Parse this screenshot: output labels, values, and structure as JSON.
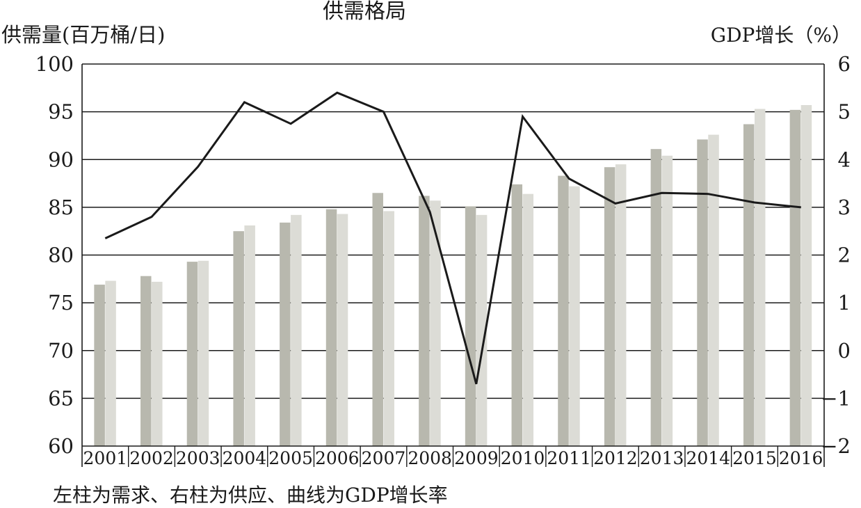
{
  "chart_data": {
    "type": "bar",
    "title": "供需格局",
    "ylabel_left": "供需量(百万桶/日)",
    "ylabel_right": "GDP增长（%）",
    "caption": "左柱为需求、右柱为供应、曲线为GDP增长率",
    "categories": [
      "2001",
      "2002",
      "2003",
      "2004",
      "2005",
      "2006",
      "2007",
      "2008",
      "2009",
      "2010",
      "2011",
      "2012",
      "2013",
      "2014",
      "2015",
      "2016"
    ],
    "left_axis": {
      "ylim": [
        60,
        100
      ],
      "ticks": [
        100,
        95,
        90,
        85,
        80,
        75,
        70,
        65,
        60
      ],
      "tick_labels": [
        "100",
        "95",
        "90",
        "85",
        "80",
        "75",
        "70",
        "65",
        "60"
      ]
    },
    "right_axis": {
      "ylim": [
        -2,
        6
      ],
      "ticks": [
        6,
        5,
        4,
        3,
        2,
        1,
        0,
        -1,
        -2
      ],
      "tick_labels": [
        "6",
        "5",
        "4",
        "3",
        "2",
        "1",
        "0",
        "−1",
        "−2"
      ]
    },
    "grid": "horizontal",
    "series": [
      {
        "name": "需求",
        "kind": "bar",
        "axis": "left",
        "color": "#b8b8ae",
        "values": [
          76.9,
          77.8,
          79.3,
          82.5,
          83.4,
          84.8,
          86.5,
          86.2,
          85.1,
          87.4,
          88.3,
          89.2,
          91.1,
          92.1,
          93.7,
          95.2
        ]
      },
      {
        "name": "供应",
        "kind": "bar",
        "axis": "left",
        "color": "#dcdcd6",
        "values": [
          77.3,
          77.2,
          79.4,
          83.1,
          84.2,
          84.3,
          84.6,
          85.7,
          84.2,
          86.4,
          87.2,
          89.5,
          90.4,
          92.6,
          95.3,
          95.7
        ]
      },
      {
        "name": "GDP增长率",
        "kind": "line",
        "axis": "right",
        "color": "#1a1a1a",
        "values": [
          2.35,
          2.8,
          3.85,
          5.2,
          4.75,
          5.4,
          5.0,
          2.9,
          -0.7,
          4.9,
          3.6,
          3.08,
          3.3,
          3.28,
          3.1,
          3.0
        ]
      }
    ]
  }
}
